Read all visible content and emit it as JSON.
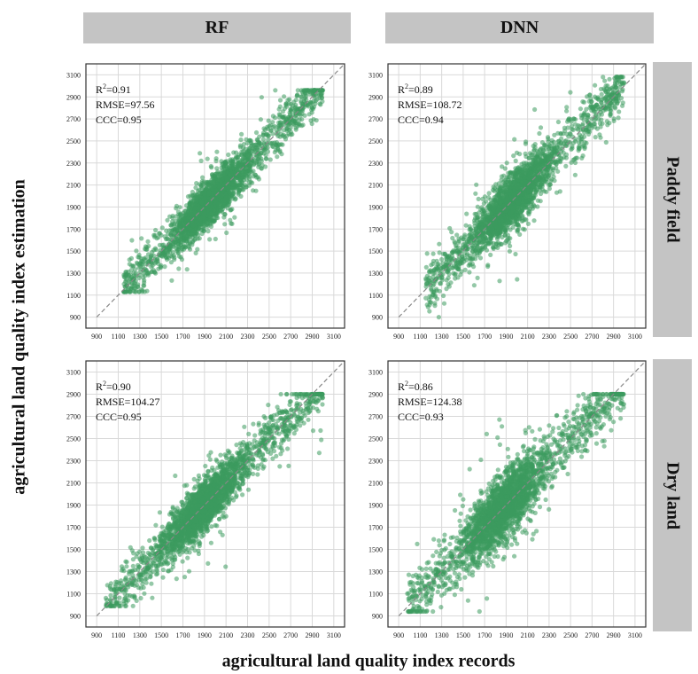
{
  "figure": {
    "col_headers": [
      "RF",
      "DNN"
    ],
    "row_headers": [
      "Paddy field",
      "Dry land"
    ],
    "xlabel": "agricultural land quality index records",
    "ylabel": "agricultural land quality index estimation"
  },
  "colors": {
    "points": "#3d9a5f",
    "reference_line": "#888888",
    "grid": "#d9d9d9",
    "header_bg": "#c4c4c4"
  },
  "chart_data": [
    {
      "type": "scatter",
      "model": "RF",
      "land": "Paddy field",
      "stats": {
        "r2_label": "R",
        "r2_value": "=0.91",
        "rmse": "RMSE=97.56",
        "ccc": "CCC=0.95"
      },
      "xlim": [
        800,
        3200
      ],
      "ylim": [
        800,
        3200
      ],
      "ticks": [
        900,
        1100,
        1300,
        1500,
        1700,
        1900,
        2100,
        2300,
        2500,
        2700,
        2900,
        3100
      ],
      "grid": true,
      "reference_line": "1:1 dashed",
      "x_range": [
        1150,
        3000
      ],
      "y_range": [
        1130,
        2960
      ],
      "noise_sd": 105,
      "num_points": 2600,
      "seed": 11
    },
    {
      "type": "scatter",
      "model": "DNN",
      "land": "Paddy field",
      "stats": {
        "r2_label": "R",
        "r2_value": "=0.89",
        "rmse": "RMSE=108.72",
        "ccc": "CCC=0.94"
      },
      "xlim": [
        800,
        3200
      ],
      "ylim": [
        800,
        3200
      ],
      "ticks": [
        900,
        1100,
        1300,
        1500,
        1700,
        1900,
        2100,
        2300,
        2500,
        2700,
        2900,
        3100
      ],
      "grid": true,
      "reference_line": "1:1 dashed",
      "x_range": [
        1150,
        3000
      ],
      "y_range": [
        900,
        3080
      ],
      "noise_sd": 120,
      "num_points": 2600,
      "seed": 23
    },
    {
      "type": "scatter",
      "model": "RF",
      "land": "Dry land",
      "stats": {
        "r2_label": "R",
        "r2_value": "=0.90",
        "rmse": "RMSE=104.27",
        "ccc": "CCC=0.95"
      },
      "xlim": [
        800,
        3200
      ],
      "ylim": [
        800,
        3200
      ],
      "ticks": [
        900,
        1100,
        1300,
        1500,
        1700,
        1900,
        2100,
        2300,
        2500,
        2700,
        2900,
        3100
      ],
      "grid": true,
      "reference_line": "1:1 dashed",
      "x_range": [
        980,
        3000
      ],
      "y_range": [
        990,
        2900
      ],
      "noise_sd": 115,
      "num_points": 2600,
      "seed": 37
    },
    {
      "type": "scatter",
      "model": "DNN",
      "land": "Dry land",
      "stats": {
        "r2_label": "R",
        "r2_value": "=0.86",
        "rmse": "RMSE=124.38",
        "ccc": "CCC=0.93"
      },
      "xlim": [
        800,
        3200
      ],
      "ylim": [
        800,
        3200
      ],
      "ticks": [
        900,
        1100,
        1300,
        1500,
        1700,
        1900,
        2100,
        2300,
        2500,
        2700,
        2900,
        3100
      ],
      "grid": true,
      "reference_line": "1:1 dashed",
      "x_range": [
        980,
        3000
      ],
      "y_range": [
        940,
        2900
      ],
      "noise_sd": 140,
      "num_points": 2600,
      "seed": 53
    }
  ]
}
